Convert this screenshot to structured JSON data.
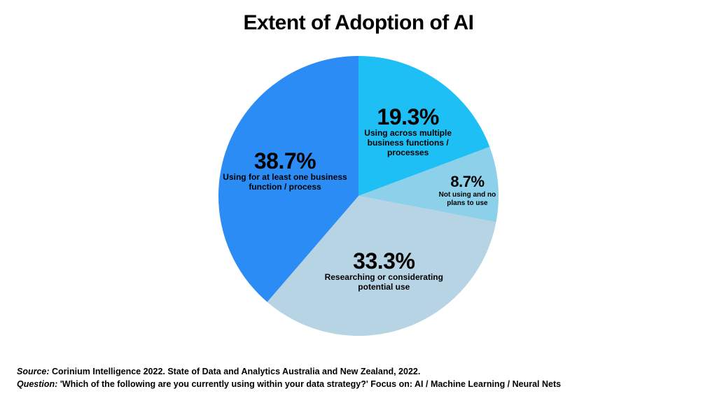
{
  "title": "Extent of Adoption of AI",
  "chart": {
    "type": "pie",
    "radius": 200,
    "start_angle_deg": 0,
    "background_color": "#ffffff",
    "pct_fontsize": 32,
    "sub_fontsize": 12,
    "small_pct_fontsize": 22,
    "small_sub_fontsize": 10,
    "slices": [
      {
        "value": 19.3,
        "pct_label": "19.3%",
        "sub1": "Using across multiple",
        "sub2": "business functions /",
        "sub3": "processes",
        "color": "#1ebff5",
        "label_r": 0.62,
        "size": "big"
      },
      {
        "value": 8.7,
        "pct_label": "8.7%",
        "sub1": "Not using and no",
        "sub2": "plans to use",
        "sub3": "",
        "color": "#8cd0ea",
        "label_r": 0.78,
        "size": "small"
      },
      {
        "value": 33.3,
        "pct_label": "33.3%",
        "sub1": "Researching or considerating",
        "sub2": "potential use",
        "sub3": "",
        "color": "#b6d4e3",
        "label_r": 0.55,
        "size": "big"
      },
      {
        "value": 38.7,
        "pct_label": "38.7%",
        "sub1": "Using for at least one business",
        "sub2": "function / process",
        "sub3": "",
        "color": "#2a8cf4",
        "label_r": 0.56,
        "size": "big"
      }
    ]
  },
  "footer": {
    "source_prefix": "Source: ",
    "source_text": "Corinium Intelligence 2022. State of Data and Analytics Australia and New Zealand, 2022.",
    "question_prefix": "Question: ",
    "question_text": "'Which of the following are you currently using within your data strategy?' Focus on:  AI / Machine Learning / Neural Nets"
  }
}
